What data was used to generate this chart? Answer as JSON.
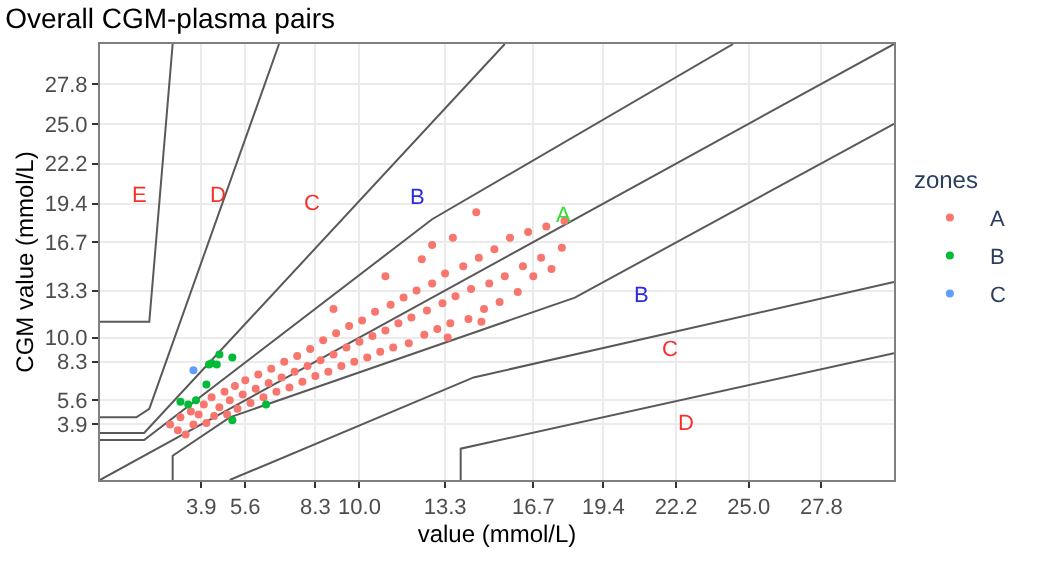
{
  "chart_data": {
    "type": "scatter",
    "title": "Overall CGM-plasma pairs",
    "xlabel": "value (mmol/L)",
    "ylabel": "CGM value (mmol/L)",
    "legend_title": "zones",
    "legend": "right",
    "grid": true,
    "marker": "circle",
    "xlim": [
      0,
      30.6
    ],
    "ylim": [
      0,
      30.6
    ],
    "xticks": [
      3.9,
      5.6,
      8.3,
      {
        "value": 10,
        "label": "10.0"
      },
      13.3,
      16.7,
      19.4,
      22.2,
      {
        "value": 25,
        "label": "25.0"
      },
      27.8
    ],
    "yticks": [
      3.9,
      5.6,
      8.3,
      {
        "value": 10,
        "label": "10.0"
      },
      13.3,
      16.7,
      19.4,
      22.2,
      {
        "value": 25,
        "label": "25.0"
      },
      27.8
    ],
    "series": [
      {
        "type": "line",
        "marker": "none",
        "color": "#595959",
        "x": [
          0,
          30.6
        ],
        "values": [
          0,
          30.6
        ]
      },
      {
        "type": "line",
        "marker": "none",
        "color": "#595959",
        "x": [
          0,
          1.7,
          12.8,
          24.4
        ],
        "values": [
          2.8,
          2.8,
          18.3,
          30.6
        ]
      },
      {
        "type": "line",
        "marker": "none",
        "color": "#595959",
        "x": [
          2.8,
          2.8,
          5.0,
          18.3,
          30.6
        ],
        "values": [
          0,
          1.7,
          4.4,
          12.8,
          25.0
        ]
      },
      {
        "type": "line",
        "marker": "none",
        "color": "#595959",
        "x": [
          0,
          1.7,
          15.6
        ],
        "values": [
          3.3,
          3.3,
          30.6
        ]
      },
      {
        "type": "line",
        "marker": "none",
        "color": "#595959",
        "x": [
          5.0,
          14.4,
          30.6
        ],
        "values": [
          0,
          7.2,
          13.9
        ]
      },
      {
        "type": "line",
        "marker": "none",
        "color": "#595959",
        "x": [
          0,
          1.4,
          1.9,
          6.9
        ],
        "values": [
          4.4,
          4.4,
          5.0,
          30.6
        ]
      },
      {
        "type": "line",
        "marker": "none",
        "color": "#595959",
        "x": [
          13.9,
          13.9,
          30.6
        ],
        "values": [
          0,
          2.2,
          8.9
        ]
      },
      {
        "type": "line",
        "marker": "none",
        "color": "#595959",
        "x": [
          0,
          1.9,
          2.8
        ],
        "values": [
          11.1,
          11.1,
          30.6
        ]
      },
      {
        "name": "A",
        "color": "#f8766d",
        "x": [
          2.7,
          3.0,
          3.1,
          3.3,
          3.5,
          3.6,
          3.8,
          4.0,
          4.1,
          4.3,
          4.4,
          4.6,
          4.8,
          4.9,
          5.0,
          5.2,
          5.3,
          5.5,
          5.6,
          5.8,
          6.0,
          6.1,
          6.3,
          6.5,
          6.6,
          6.8,
          7.0,
          7.1,
          7.3,
          7.5,
          7.6,
          7.8,
          8.0,
          8.1,
          8.3,
          8.5,
          8.6,
          8.8,
          9.0,
          9.1,
          9.3,
          9.5,
          9.6,
          9.8,
          10.0,
          10.1,
          10.3,
          10.5,
          10.6,
          10.8,
          11.0,
          11.2,
          11.3,
          11.5,
          11.7,
          11.9,
          12.0,
          12.2,
          12.5,
          12.6,
          12.8,
          13.0,
          13.2,
          13.3,
          13.5,
          13.7,
          14.0,
          14.2,
          14.3,
          14.6,
          14.8,
          15.0,
          15.2,
          15.4,
          15.6,
          15.8,
          16.1,
          16.3,
          16.5,
          16.7,
          17.0,
          17.2,
          17.4,
          17.8,
          17.9,
          13.4,
          11.0,
          12.4,
          9.0,
          14.7,
          14.5,
          12.8,
          13.6
        ],
        "values": [
          3.9,
          3.5,
          4.4,
          3.2,
          4.8,
          3.9,
          4.6,
          5.3,
          4.0,
          5.8,
          4.5,
          5.1,
          6.2,
          4.6,
          5.6,
          6.6,
          5.0,
          6.0,
          7.0,
          5.4,
          6.4,
          7.4,
          5.8,
          6.8,
          7.8,
          6.2,
          7.2,
          8.3,
          6.5,
          7.6,
          8.7,
          6.9,
          8.0,
          9.2,
          7.3,
          8.4,
          9.8,
          7.6,
          8.8,
          10.3,
          8.0,
          9.3,
          10.8,
          8.3,
          9.7,
          11.2,
          8.6,
          10.1,
          11.8,
          9.0,
          10.5,
          12.3,
          9.3,
          11.0,
          12.8,
          9.6,
          11.4,
          13.3,
          10.2,
          11.9,
          13.8,
          10.6,
          12.4,
          14.5,
          11.0,
          12.9,
          15.0,
          11.3,
          13.4,
          15.6,
          12.0,
          13.8,
          16.2,
          12.5,
          14.3,
          17.0,
          13.2,
          15.0,
          17.4,
          14.3,
          15.6,
          17.8,
          14.8,
          16.3,
          18.2,
          10.0,
          14.3,
          15.5,
          12.0,
          11.1,
          18.8,
          16.5,
          17.0
        ]
      },
      {
        "name": "B",
        "color": "#00ba38",
        "x": [
          4.2,
          4.3,
          4.6,
          4.5,
          5.1,
          4.1,
          3.1,
          3.4,
          3.7,
          6.4,
          5.1
        ],
        "values": [
          8.1,
          8.2,
          8.8,
          8.1,
          8.6,
          6.7,
          5.5,
          5.3,
          5.6,
          5.3,
          4.2
        ]
      },
      {
        "name": "C",
        "color": "#619cff",
        "x": [
          3.6
        ],
        "values": [
          7.7
        ]
      }
    ],
    "annotations": [
      "E",
      "D",
      "C",
      "B",
      "A",
      "B",
      "C",
      "D"
    ]
  }
}
